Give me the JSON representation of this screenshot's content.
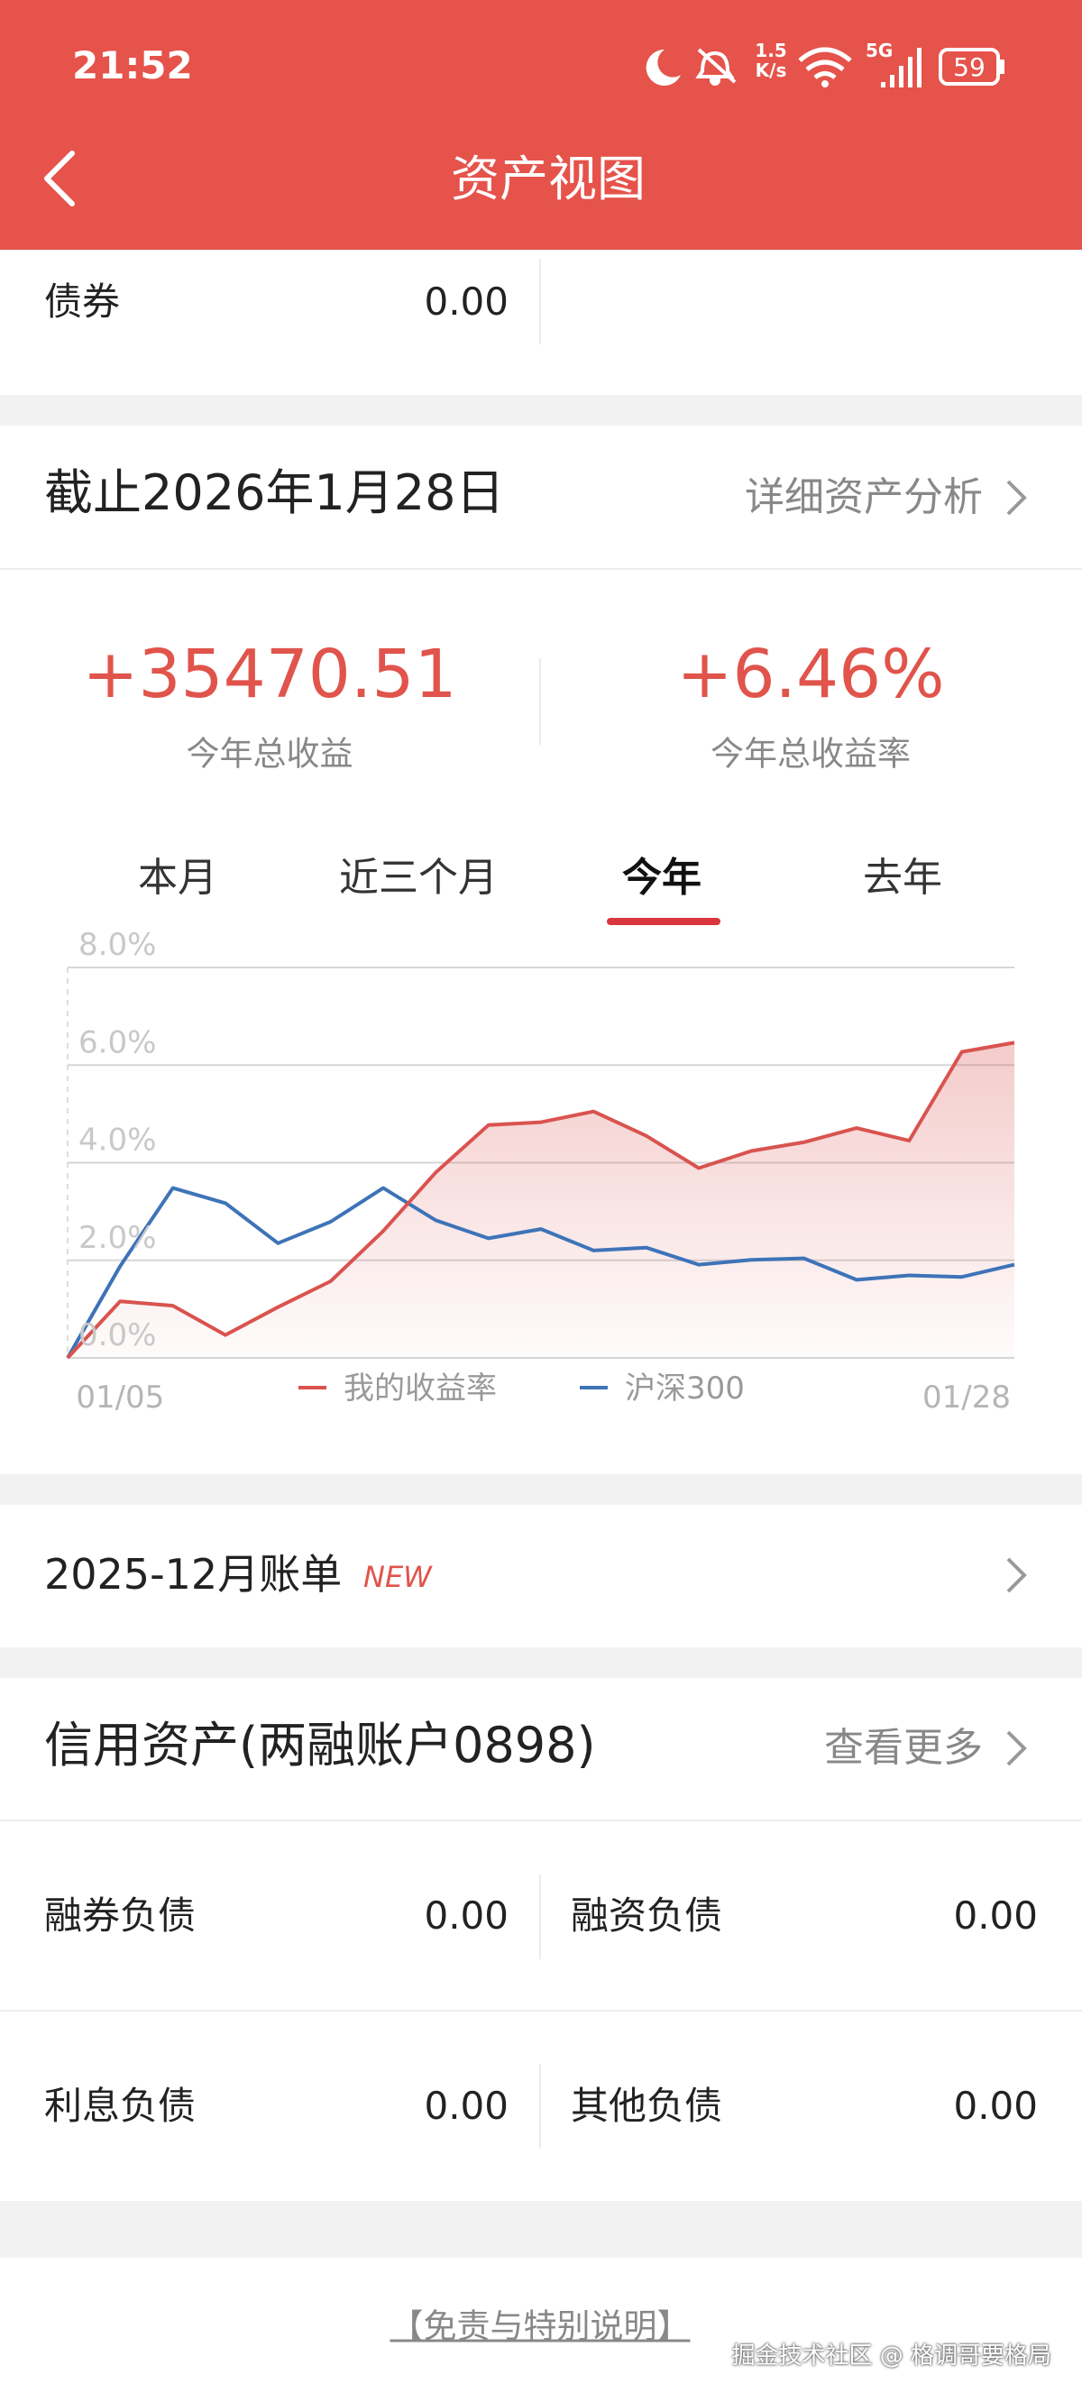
{
  "status_bar": {
    "time": "21:52",
    "net_speed": "1.5",
    "net_unit": "K/s",
    "network": "5G",
    "battery": "59"
  },
  "header": {
    "title": "资产视图"
  },
  "bond_row": {
    "label": "债券",
    "value": "0.00"
  },
  "summary": {
    "date": "截止2026年1月28日",
    "link": "详细资产分析",
    "total_profit": "+35470.51",
    "total_profit_label": "今年总收益",
    "total_rate": "+6.46%",
    "total_rate_label": "今年总收益率"
  },
  "tabs": [
    "本月",
    "近三个月",
    "今年",
    "去年"
  ],
  "chart_data": {
    "type": "line",
    "categories": [
      null,
      "01/05",
      null,
      null,
      null,
      null,
      null,
      null,
      null,
      null,
      null,
      null,
      null,
      null,
      null,
      null,
      null,
      null,
      "01/28"
    ],
    "series": [
      {
        "name": "我的收益率",
        "color": "#d9534f",
        "values": [
          0,
          1.16,
          1.07,
          0.47,
          1.04,
          1.57,
          2.6,
          3.8,
          4.77,
          4.83,
          5.05,
          4.55,
          3.89,
          4.24,
          4.42,
          4.71,
          4.45,
          6.27,
          6.46
        ]
      },
      {
        "name": "沪深300",
        "color": "#3e73b8",
        "values": [
          0,
          1.88,
          3.48,
          3.17,
          2.35,
          2.79,
          3.48,
          2.82,
          2.45,
          2.64,
          2.2,
          2.26,
          1.91,
          2.01,
          2.04,
          1.6,
          1.69,
          1.66,
          1.91
        ]
      }
    ],
    "ylim": [
      0,
      8
    ],
    "yticks": [
      {
        "value": 0,
        "label": "0.0%"
      },
      {
        "value": 2,
        "label": "2.0%"
      },
      {
        "value": 4,
        "label": "4.0%"
      },
      {
        "value": 6,
        "label": "6.0%"
      },
      {
        "value": 8,
        "label": "8.0%"
      }
    ],
    "grid": true
  },
  "bill": {
    "title": "2025-12月账单",
    "badge": "NEW"
  },
  "credit": {
    "title": "信用资产(两融账户0898)",
    "link": "查看更多",
    "rows": [
      [
        {
          "label": "融券负债",
          "value": "0.00"
        },
        {
          "label": "融资负债",
          "value": "0.00"
        }
      ],
      [
        {
          "label": "利息负债",
          "value": "0.00"
        },
        {
          "label": "其他负债",
          "value": "0.00"
        }
      ]
    ]
  },
  "footer": {
    "disclaimer": "【免责与特别说明】",
    "watermark": "掘金技术社区 @ 格调哥要格局"
  }
}
